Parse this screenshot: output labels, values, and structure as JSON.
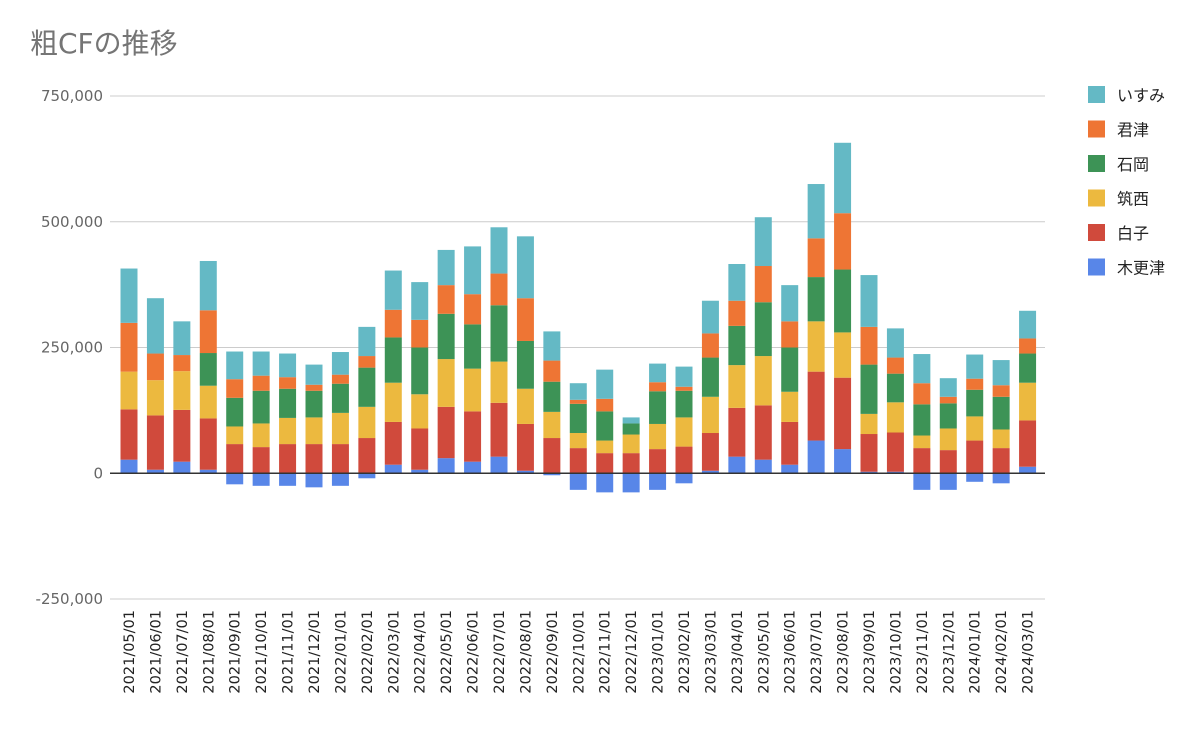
{
  "chart_data": {
    "type": "bar",
    "stacked": true,
    "title": "粗CFの推移",
    "xlabel": "",
    "ylabel": "",
    "ylim": [
      -250000,
      750000
    ],
    "yticks": [
      -250000,
      0,
      250000,
      500000,
      750000
    ],
    "ytick_labels": [
      "-250,000",
      "0",
      "250,000",
      "500,000",
      "750,000"
    ],
    "grid": true,
    "legend_position": "right",
    "categories": [
      "2021/05/01",
      "2021/06/01",
      "2021/07/01",
      "2021/08/01",
      "2021/09/01",
      "2021/10/01",
      "2021/11/01",
      "2021/12/01",
      "2022/01/01",
      "2022/02/01",
      "2022/03/01",
      "2022/04/01",
      "2022/05/01",
      "2022/06/01",
      "2022/07/01",
      "2022/08/01",
      "2022/09/01",
      "2022/10/01",
      "2022/11/01",
      "2022/12/01",
      "2023/01/01",
      "2023/02/01",
      "2023/03/01",
      "2023/04/01",
      "2023/05/01",
      "2023/06/01",
      "2023/07/01",
      "2023/08/01",
      "2023/09/01",
      "2023/10/01",
      "2023/11/01",
      "2023/12/01",
      "2024/01/01",
      "2024/02/01",
      "2024/03/01"
    ],
    "series": [
      {
        "name": "木更津",
        "color": "#5886e8",
        "values": [
          27000,
          7000,
          23000,
          7000,
          -22000,
          -25000,
          -25000,
          -28000,
          -25000,
          -10000,
          17000,
          7000,
          30000,
          23000,
          33000,
          5000,
          -4000,
          -33000,
          -38000,
          -38000,
          -33000,
          -20000,
          5000,
          33000,
          27000,
          17000,
          65000,
          48000,
          3000,
          3000,
          -33000,
          -33000,
          -17000,
          -20000,
          13000
        ]
      },
      {
        "name": "白子",
        "color": "#d04a3c",
        "values": [
          100000,
          108000,
          103000,
          102000,
          58000,
          52000,
          58000,
          58000,
          58000,
          70000,
          85000,
          82000,
          102000,
          100000,
          107000,
          93000,
          70000,
          50000,
          40000,
          40000,
          48000,
          53000,
          75000,
          97000,
          108000,
          85000,
          137000,
          142000,
          75000,
          78000,
          50000,
          46000,
          65000,
          50000,
          92000
        ]
      },
      {
        "name": "筑西",
        "color": "#ecb93f",
        "values": [
          75000,
          70000,
          77000,
          65000,
          35000,
          47000,
          52000,
          53000,
          62000,
          62000,
          78000,
          68000,
          95000,
          85000,
          82000,
          70000,
          52000,
          30000,
          25000,
          37000,
          50000,
          58000,
          72000,
          85000,
          98000,
          60000,
          100000,
          90000,
          40000,
          60000,
          25000,
          43000,
          48000,
          37000,
          75000
        ]
      },
      {
        "name": "石岡",
        "color": "#3d9356",
        "values": [
          0,
          0,
          0,
          65000,
          57000,
          65000,
          58000,
          53000,
          58000,
          78000,
          90000,
          93000,
          90000,
          88000,
          112000,
          95000,
          60000,
          58000,
          58000,
          22000,
          65000,
          53000,
          78000,
          78000,
          107000,
          88000,
          88000,
          125000,
          98000,
          57000,
          62000,
          50000,
          53000,
          65000,
          58000
        ]
      },
      {
        "name": "君津",
        "color": "#ee7534",
        "values": [
          97000,
          53000,
          32000,
          85000,
          37000,
          30000,
          23000,
          12000,
          18000,
          23000,
          55000,
          55000,
          57000,
          60000,
          63000,
          85000,
          42000,
          8000,
          25000,
          0,
          18000,
          8000,
          48000,
          50000,
          72000,
          52000,
          77000,
          112000,
          75000,
          32000,
          42000,
          13000,
          22000,
          23000,
          30000
        ]
      },
      {
        "name": "いすみ",
        "color": "#64b9c5",
        "values": [
          108000,
          110000,
          67000,
          98000,
          55000,
          48000,
          47000,
          40000,
          45000,
          58000,
          78000,
          75000,
          70000,
          95000,
          92000,
          123000,
          58000,
          33000,
          58000,
          12000,
          37000,
          40000,
          65000,
          73000,
          97000,
          72000,
          108000,
          140000,
          103000,
          58000,
          58000,
          37000,
          48000,
          50000,
          55000
        ]
      }
    ]
  }
}
